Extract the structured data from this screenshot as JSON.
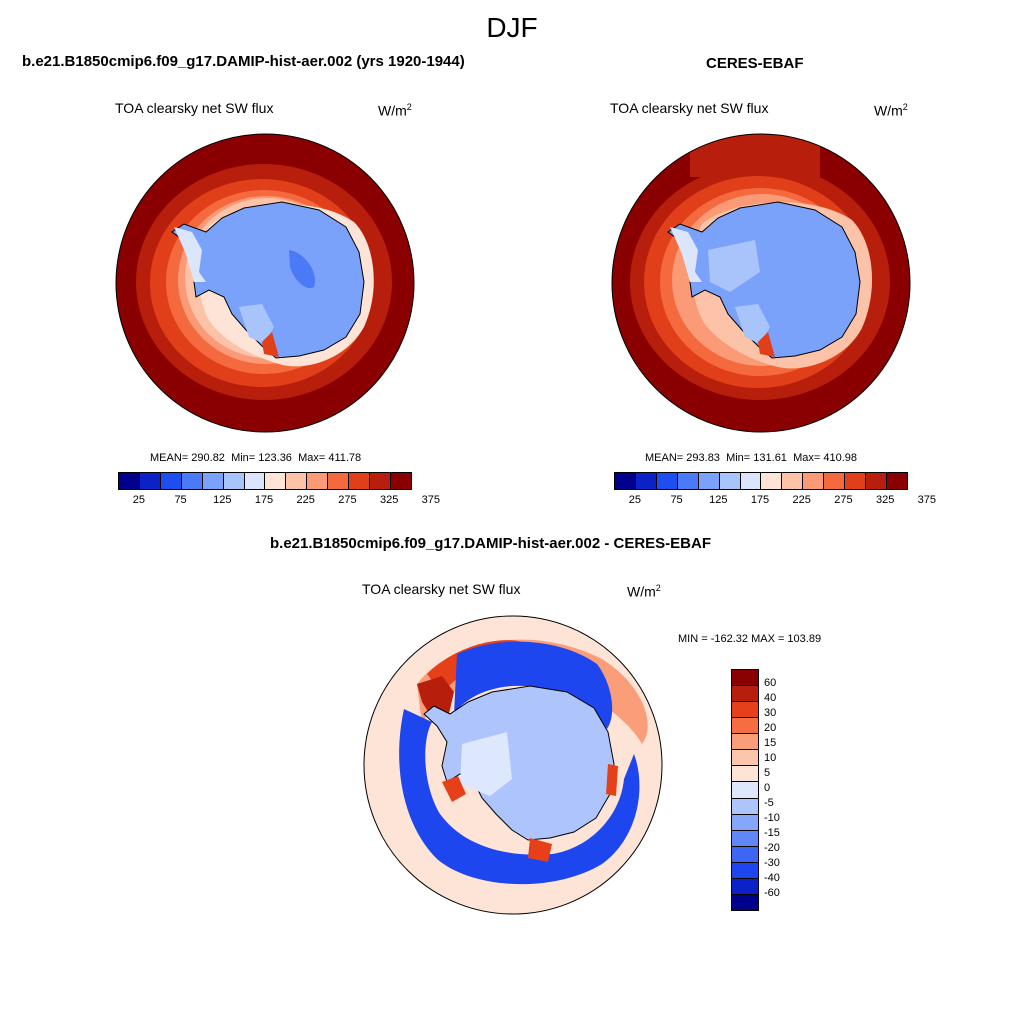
{
  "season": "DJF",
  "colors": {
    "abs_scale": [
      "#00008c",
      "#0a22c7",
      "#1e4ef0",
      "#4a7af5",
      "#7aa2fa",
      "#a9c4fb",
      "#dbe6fd",
      "#fde4d6",
      "#fcc3a8",
      "#fa9a76",
      "#f5693f",
      "#e13f1a",
      "#b71f0c",
      "#8a0000"
    ],
    "diff_scale": [
      "#00008c",
      "#0a22c7",
      "#1e46ee",
      "#3c66f3",
      "#5f87f7",
      "#86a6fa",
      "#adc4fc",
      "#dde7fe",
      "#fde4d6",
      "#fcc6ac",
      "#fa9e7a",
      "#f66c43",
      "#e6401b",
      "#b71f0c",
      "#8a0000"
    ],
    "land_contour": "#000000"
  },
  "panels": {
    "model": {
      "title": "b.e21.B1850cmip6.f09_g17.DAMIP-hist-aer.002 (yrs 1920-1944)",
      "variable": "TOA clearsky net SW flux",
      "units": "W/m",
      "units_exp": "2",
      "mean_label": "MEAN=",
      "mean": "290.82",
      "min_label": "Min=",
      "min": "123.36",
      "max_label": "Max=",
      "max": "411.78",
      "colorbar_ticks": [
        "25",
        "75",
        "125",
        "175",
        "225",
        "275",
        "325",
        "375"
      ]
    },
    "obs": {
      "title": "CERES-EBAF",
      "variable": "TOA clearsky net SW flux",
      "units": "W/m",
      "units_exp": "2",
      "mean_label": "MEAN=",
      "mean": "293.83",
      "min_label": "Min=",
      "min": "131.61",
      "max_label": "Max=",
      "max": "410.98",
      "colorbar_ticks": [
        "25",
        "75",
        "125",
        "175",
        "225",
        "275",
        "325",
        "375"
      ]
    },
    "diff": {
      "title": "b.e21.B1850cmip6.f09_g17.DAMIP-hist-aer.002 - CERES-EBAF",
      "variable": "TOA clearsky net SW flux",
      "units": "W/m",
      "units_exp": "2",
      "minmax": "MIN = -162.32 MAX = 103.89",
      "colorbar_ticks": [
        "60",
        "40",
        "30",
        "20",
        "15",
        "10",
        "5",
        "0",
        "-5",
        "-10",
        "-15",
        "-20",
        "-30",
        "-40",
        "-60"
      ]
    }
  }
}
